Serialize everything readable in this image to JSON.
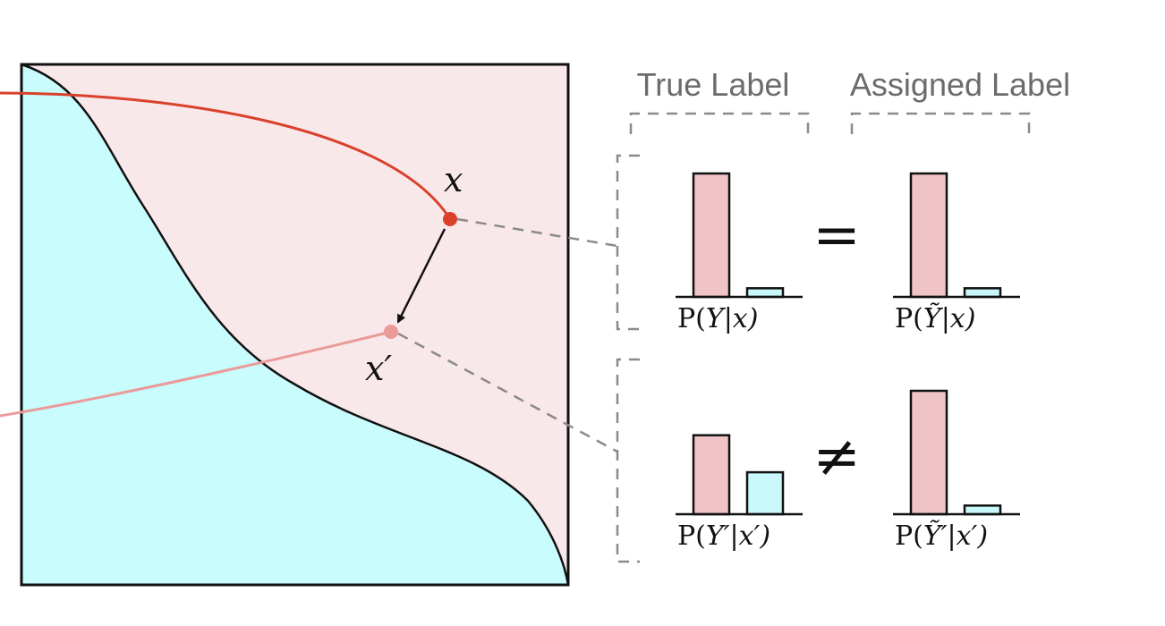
{
  "headers": {
    "true_label": "True Label",
    "assigned_label": "Assigned Label"
  },
  "points": {
    "x": {
      "label": "x"
    },
    "x_prime": {
      "label": "x′"
    }
  },
  "comparisons": {
    "equal": "=",
    "not_equal": "≠"
  },
  "distributions": {
    "top": {
      "true": {
        "label_pre": "P(",
        "label_var": "Y",
        "label_post": "|x)",
        "values": [
          1.0,
          0.07
        ]
      },
      "assigned": {
        "label_pre": "P(",
        "label_var": "Ỹ",
        "label_post": "|x)",
        "values": [
          1.0,
          0.07
        ]
      }
    },
    "bottom": {
      "true": {
        "label_pre": "P(",
        "label_var": "Y′",
        "label_post": "|x′)",
        "values": [
          0.64,
          0.34
        ]
      },
      "assigned": {
        "label_pre": "P(",
        "label_var": "Ỹ′",
        "label_post": "|x′)",
        "values": [
          1.0,
          0.07
        ]
      }
    }
  },
  "colors": {
    "region_a": "#f9e8ea",
    "region_b": "#c9fcfd",
    "bar_a": "#f0c4c6",
    "bar_b": "#c9f8fb",
    "path_x": "#d9412b",
    "path_x_prime": "#ea9a98",
    "dashed": "#8a8a8a"
  }
}
